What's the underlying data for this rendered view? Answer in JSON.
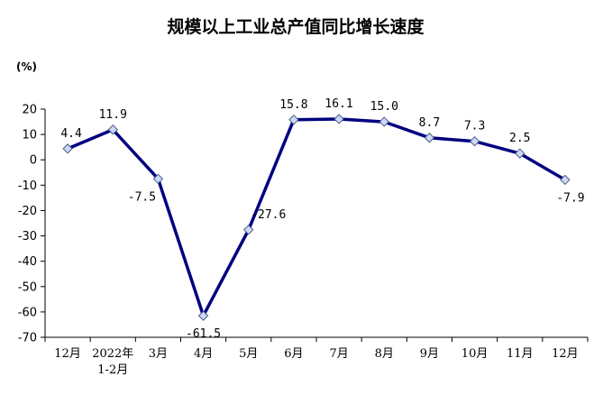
{
  "chart_data": {
    "type": "line",
    "title": "规模以上工业总产值同比增长速度",
    "ylabel": "(%)",
    "xlabel": "",
    "ylim": [
      -70,
      20
    ],
    "yticks": [
      20,
      10,
      0,
      -10,
      -20,
      -30,
      -40,
      -50,
      -60,
      -70
    ],
    "grid": false,
    "legend": "none",
    "categories": [
      [
        "12月"
      ],
      [
        "2022年",
        "1-2月"
      ],
      [
        "3月"
      ],
      [
        "4月"
      ],
      [
        "5月"
      ],
      [
        "6月"
      ],
      [
        "7月"
      ],
      [
        "8月"
      ],
      [
        "9月"
      ],
      [
        "10月"
      ],
      [
        "11月"
      ],
      [
        "12月"
      ]
    ],
    "values": [
      4.4,
      11.9,
      -7.5,
      -61.5,
      -27.6,
      15.8,
      16.1,
      15.0,
      8.7,
      7.3,
      2.5,
      -7.9
    ],
    "data_labels": [
      "4.4",
      "11.9",
      "-7.5",
      "-61.5",
      "-27.6",
      "15.8",
      "16.1",
      "15.0",
      "8.7",
      "7.3",
      "2.5",
      "-7.9"
    ],
    "line_color": "#000080",
    "marker_fill": "#ccd9f5"
  }
}
